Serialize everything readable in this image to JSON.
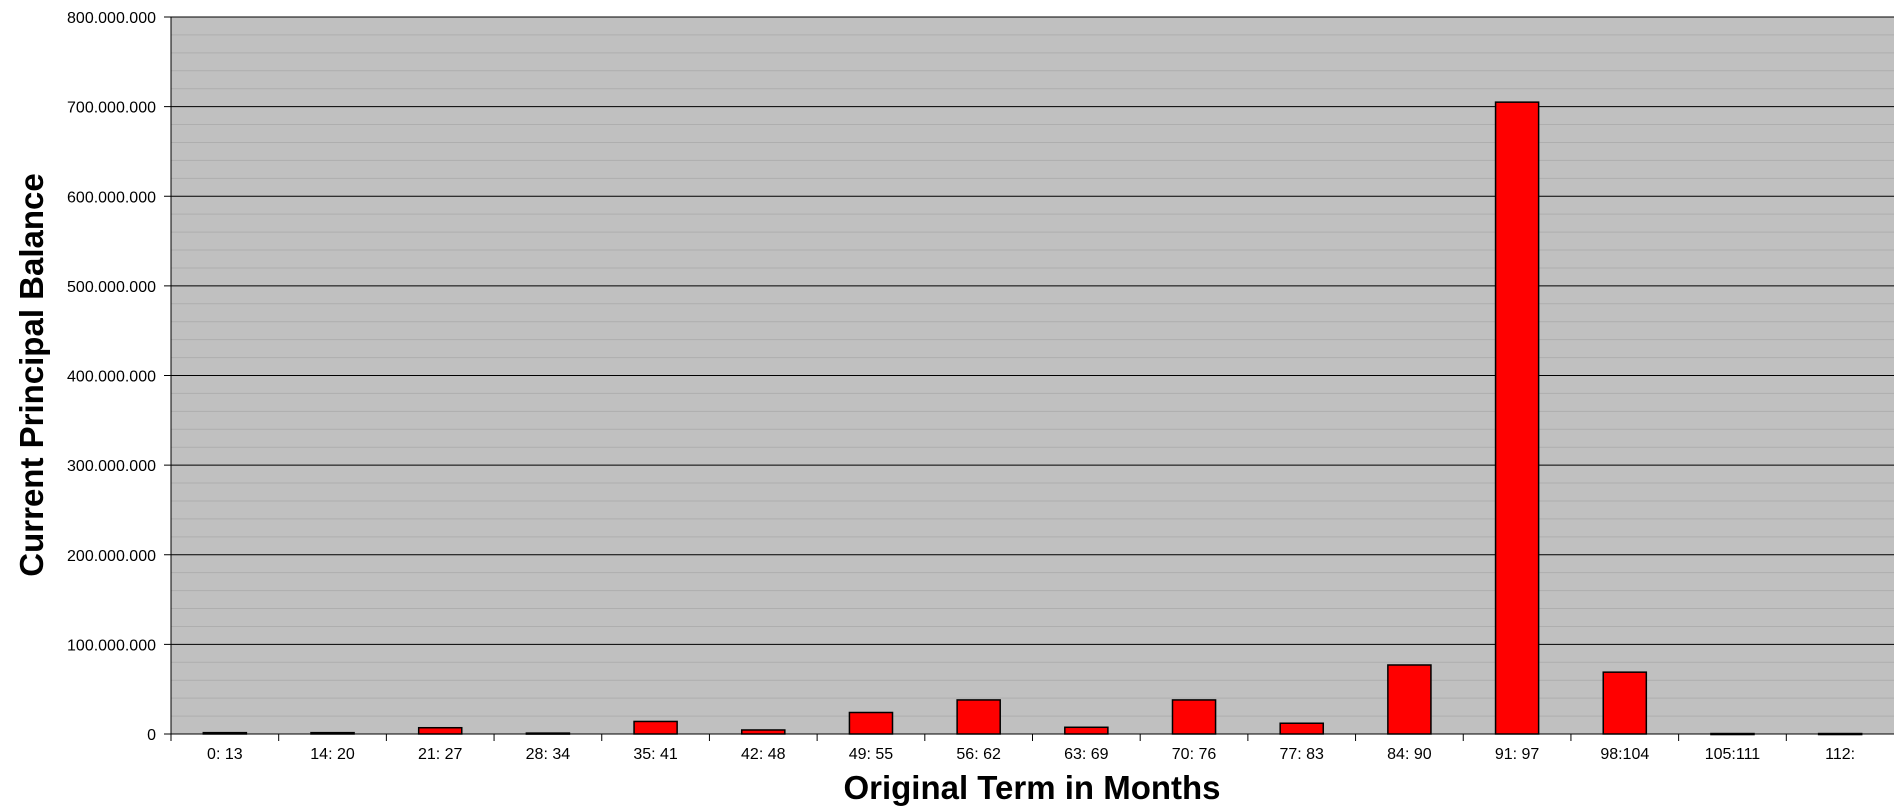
{
  "chart_data": {
    "type": "bar",
    "title": "",
    "xlabel": "Original Term in Months",
    "ylabel": "Current Principal Balance",
    "categories": [
      "0: 13",
      "14: 20",
      "21: 27",
      "28: 34",
      "35: 41",
      "42: 48",
      "49: 55",
      "56: 62",
      "63: 69",
      "70: 76",
      "77: 83",
      "84: 90",
      "91: 97",
      "98:104",
      "105:111",
      "112:"
    ],
    "values": [
      1500000,
      1500000,
      7000000,
      1000000,
      14000000,
      4500000,
      24000000,
      38000000,
      7500000,
      38000000,
      12000000,
      77000000,
      705000000,
      69000000,
      500000,
      500000
    ],
    "ylim": [
      0,
      800000000
    ],
    "yticks": [
      0,
      100000000,
      200000000,
      300000000,
      400000000,
      500000000,
      600000000,
      700000000,
      800000000
    ],
    "ytick_labels": [
      "0",
      "100.000.000",
      "200.000.000",
      "300.000.000",
      "400.000.000",
      "500.000.000",
      "600.000.000",
      "700.000.000",
      "800.000.000"
    ],
    "minor_gridlines": true,
    "bar_color": "#ff0000",
    "bar_edge_color": "#000000",
    "plot_background": "#c0c0c0",
    "legend": "none"
  }
}
